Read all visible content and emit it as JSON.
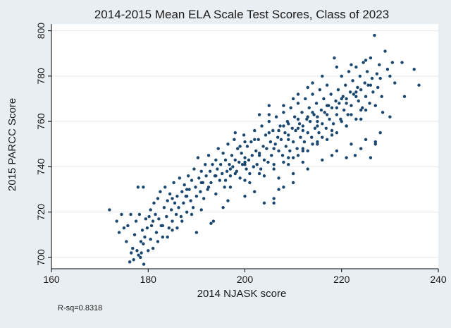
{
  "chart_data": {
    "type": "scatter",
    "title": "2014-2015 Mean ELA Scale Test Scores, Class of 2023",
    "xlabel": "2014 NJASK score",
    "ylabel": "2015 PARCC Score",
    "xlim": [
      160,
      240
    ],
    "ylim": [
      695,
      803
    ],
    "x_ticks": [
      160,
      180,
      200,
      220,
      240
    ],
    "y_ticks": [
      700,
      720,
      740,
      760,
      780,
      800
    ],
    "grid": "horizontal",
    "legend": "none",
    "annotation": "R-sq=0.8318",
    "point_color": "#1a476f",
    "background_color": "#e9eef2",
    "plot_background_color": "#ffffff",
    "grid_color": "#e3e9ee",
    "points": [
      [
        172,
        721
      ],
      [
        173.5,
        716
      ],
      [
        174,
        711
      ],
      [
        174.5,
        719
      ],
      [
        175,
        713
      ],
      [
        175.5,
        707
      ],
      [
        175.8,
        714
      ],
      [
        176.2,
        698
      ],
      [
        176.4,
        719
      ],
      [
        176.8,
        704
      ],
      [
        177,
        699
      ],
      [
        177.2,
        710
      ],
      [
        177.5,
        716
      ],
      [
        177.7,
        703
      ],
      [
        177.9,
        731
      ],
      [
        178,
        701
      ],
      [
        178.2,
        719
      ],
      [
        178.4,
        700
      ],
      [
        178.6,
        702
      ],
      [
        178.8,
        712
      ],
      [
        179,
        731
      ],
      [
        179.1,
        697
      ],
      [
        179.3,
        709
      ],
      [
        179.5,
        717
      ],
      [
        179.8,
        713
      ],
      [
        180,
        703
      ],
      [
        180.2,
        718
      ],
      [
        180.5,
        721
      ],
      [
        180.7,
        714
      ],
      [
        181,
        716
      ],
      [
        181.2,
        724
      ],
      [
        181.5,
        719
      ],
      [
        181.7,
        711
      ],
      [
        182,
        726
      ],
      [
        182.2,
        717
      ],
      [
        182.5,
        729
      ],
      [
        182.7,
        714
      ],
      [
        183,
        709
      ],
      [
        183.3,
        722
      ],
      [
        183.5,
        731
      ],
      [
        183.8,
        718
      ],
      [
        184,
        725
      ],
      [
        184.3,
        713
      ],
      [
        184.5,
        728
      ],
      [
        184.8,
        721
      ],
      [
        185,
        716
      ],
      [
        185.3,
        733
      ],
      [
        185.5,
        724
      ],
      [
        185.8,
        719
      ],
      [
        186,
        727
      ],
      [
        186.3,
        722
      ],
      [
        186.5,
        735
      ],
      [
        186.8,
        718
      ],
      [
        187,
        729
      ],
      [
        187.3,
        724
      ],
      [
        187.5,
        732
      ],
      [
        187.8,
        727
      ],
      [
        188,
        720
      ],
      [
        188.3,
        736
      ],
      [
        188.5,
        730
      ],
      [
        188.8,
        725
      ],
      [
        189,
        734
      ],
      [
        189.3,
        722
      ],
      [
        189.5,
        739
      ],
      [
        189.8,
        731
      ],
      [
        190,
        727
      ],
      [
        190.3,
        744
      ],
      [
        190.5,
        735
      ],
      [
        190.8,
        729
      ],
      [
        191,
        738
      ],
      [
        191.3,
        733
      ],
      [
        191.5,
        726
      ],
      [
        191.8,
        741
      ],
      [
        192,
        736
      ],
      [
        192.3,
        730
      ],
      [
        192.5,
        745
      ],
      [
        192.8,
        738
      ],
      [
        193,
        733
      ],
      [
        193.3,
        741
      ],
      [
        193.5,
        716
      ],
      [
        193.8,
        736
      ],
      [
        194,
        743
      ],
      [
        194.3,
        739
      ],
      [
        194.5,
        748
      ],
      [
        194.8,
        734
      ],
      [
        195,
        741
      ],
      [
        195.3,
        737
      ],
      [
        195.5,
        746
      ],
      [
        195.8,
        731
      ],
      [
        196,
        743
      ],
      [
        196.3,
        738
      ],
      [
        196.5,
        750
      ],
      [
        196.8,
        741
      ],
      [
        197,
        736
      ],
      [
        197.3,
        745
      ],
      [
        197.5,
        740
      ],
      [
        197.8,
        752
      ],
      [
        198,
        743
      ],
      [
        198.3,
        738
      ],
      [
        198.5,
        748
      ],
      [
        198.8,
        742
      ],
      [
        199,
        735
      ],
      [
        199.3,
        746
      ],
      [
        199.5,
        741
      ],
      [
        199.8,
        754
      ],
      [
        200,
        744
      ],
      [
        200.3,
        739
      ],
      [
        200.5,
        749
      ],
      [
        200.8,
        743
      ],
      [
        201,
        737
      ],
      [
        201.3,
        751
      ],
      [
        201.5,
        745
      ],
      [
        201.8,
        740
      ],
      [
        202,
        756
      ],
      [
        202.3,
        747
      ],
      [
        202.5,
        741
      ],
      [
        202.8,
        752
      ],
      [
        203,
        746
      ],
      [
        203.3,
        739
      ],
      [
        203.5,
        758
      ],
      [
        203.8,
        749
      ],
      [
        204,
        743
      ],
      [
        204.3,
        754
      ],
      [
        204.5,
        748
      ],
      [
        204.8,
        742
      ],
      [
        205,
        760
      ],
      [
        205.3,
        751
      ],
      [
        205.5,
        745
      ],
      [
        205.8,
        756
      ],
      [
        206,
        724
      ],
      [
        206.3,
        750
      ],
      [
        206.5,
        762
      ],
      [
        206.8,
        753
      ],
      [
        207,
        747
      ],
      [
        207.3,
        758
      ],
      [
        207.5,
        752
      ],
      [
        207.8,
        745
      ],
      [
        208,
        764
      ],
      [
        208.3,
        755
      ],
      [
        208.5,
        749
      ],
      [
        208.8,
        760
      ],
      [
        209,
        754
      ],
      [
        209.3,
        747
      ],
      [
        209.5,
        766
      ],
      [
        209.8,
        757
      ],
      [
        210,
        751
      ],
      [
        210.3,
        762
      ],
      [
        210.5,
        756
      ],
      [
        210.8,
        748
      ],
      [
        211,
        768
      ],
      [
        211.3,
        759
      ],
      [
        211.5,
        753
      ],
      [
        211.8,
        764
      ],
      [
        212,
        758
      ],
      [
        212.3,
        751
      ],
      [
        212.5,
        770
      ],
      [
        212.8,
        761
      ],
      [
        213,
        755
      ],
      [
        213.3,
        766
      ],
      [
        213.5,
        760
      ],
      [
        213.8,
        753
      ],
      [
        214,
        772
      ],
      [
        214.3,
        763
      ],
      [
        214.5,
        757
      ],
      [
        214.8,
        768
      ],
      [
        215,
        762
      ],
      [
        215.3,
        755
      ],
      [
        215.5,
        774
      ],
      [
        215.8,
        765
      ],
      [
        216,
        759
      ],
      [
        216.3,
        770
      ],
      [
        216.5,
        764
      ],
      [
        216.8,
        757
      ],
      [
        217,
        776
      ],
      [
        217.3,
        767
      ],
      [
        217.5,
        761
      ],
      [
        217.8,
        772
      ],
      [
        218,
        766
      ],
      [
        218.3,
        759
      ],
      [
        218.5,
        788
      ],
      [
        218.8,
        769
      ],
      [
        219,
        763
      ],
      [
        219.3,
        774
      ],
      [
        219.5,
        768
      ],
      [
        219.8,
        761
      ],
      [
        220,
        780
      ],
      [
        220.3,
        771
      ],
      [
        220.5,
        765
      ],
      [
        220.8,
        776
      ],
      [
        221,
        770
      ],
      [
        221.3,
        763
      ],
      [
        221.5,
        782
      ],
      [
        221.8,
        773
      ],
      [
        222,
        767
      ],
      [
        222.3,
        778
      ],
      [
        222.5,
        772
      ],
      [
        222.8,
        745
      ],
      [
        223,
        784
      ],
      [
        223.3,
        775
      ],
      [
        223.5,
        769
      ],
      [
        223.8,
        780
      ],
      [
        224,
        774
      ],
      [
        224.3,
        766
      ],
      [
        224.5,
        786
      ],
      [
        224.8,
        777
      ],
      [
        225,
        771
      ],
      [
        225.3,
        782
      ],
      [
        225.5,
        776
      ],
      [
        225.8,
        768
      ],
      [
        226,
        788
      ],
      [
        226.3,
        779
      ],
      [
        226.5,
        773
      ],
      [
        226.8,
        798
      ],
      [
        227,
        750
      ],
      [
        227.3,
        781
      ],
      [
        227.5,
        775
      ],
      [
        227.8,
        785
      ],
      [
        228,
        779
      ],
      [
        228.3,
        771
      ],
      [
        228.5,
        764
      ],
      [
        229,
        791
      ],
      [
        229.5,
        783
      ],
      [
        230,
        780
      ],
      [
        230.5,
        786
      ],
      [
        231,
        777
      ],
      [
        232.5,
        786
      ],
      [
        233,
        771
      ],
      [
        235,
        783
      ],
      [
        236,
        776
      ],
      [
        226,
        744
      ],
      [
        193,
        715
      ],
      [
        192.5,
        731
      ],
      [
        196.5,
        725
      ],
      [
        195.5,
        722
      ],
      [
        190,
        711
      ],
      [
        188,
        727
      ],
      [
        186,
        713
      ],
      [
        183,
        714
      ],
      [
        181,
        704
      ],
      [
        179,
        706
      ],
      [
        178.5,
        707
      ],
      [
        180.5,
        708
      ],
      [
        176.5,
        702
      ],
      [
        198,
        755
      ],
      [
        200,
        751
      ],
      [
        203,
        763
      ],
      [
        205,
        767
      ],
      [
        207,
        735
      ],
      [
        209,
        741
      ],
      [
        211,
        745
      ],
      [
        213,
        747
      ],
      [
        215,
        750
      ],
      [
        217,
        752
      ],
      [
        219,
        755
      ],
      [
        221,
        758
      ],
      [
        223,
        761
      ],
      [
        225,
        765
      ],
      [
        227,
        767
      ],
      [
        201,
        733
      ],
      [
        204,
        736
      ],
      [
        206,
        739
      ],
      [
        208,
        742
      ],
      [
        210,
        744
      ],
      [
        212,
        748
      ],
      [
        214,
        750
      ],
      [
        216,
        753
      ],
      [
        218,
        756
      ],
      [
        220,
        760
      ],
      [
        222,
        763
      ],
      [
        224,
        765
      ],
      [
        199,
        749
      ],
      [
        202,
        752
      ],
      [
        205,
        755
      ],
      [
        208,
        758
      ],
      [
        211,
        761
      ],
      [
        214,
        764
      ],
      [
        217,
        767
      ],
      [
        220,
        770
      ],
      [
        223,
        773
      ],
      [
        226,
        776
      ],
      [
        197,
        731
      ],
      [
        200,
        734
      ],
      [
        203,
        737
      ],
      [
        206,
        741
      ],
      [
        209,
        744
      ],
      [
        212,
        747
      ],
      [
        215,
        751
      ],
      [
        218,
        754
      ],
      [
        221,
        758
      ],
      [
        224,
        761
      ],
      [
        207,
        730
      ],
      [
        210,
        733
      ],
      [
        213,
        739
      ],
      [
        216,
        743
      ],
      [
        219,
        747
      ],
      [
        222,
        750
      ],
      [
        225,
        752
      ],
      [
        228,
        755
      ],
      [
        230,
        762
      ],
      [
        218,
        745
      ],
      [
        221,
        744
      ],
      [
        224,
        748
      ],
      [
        227,
        751
      ],
      [
        200,
        727
      ],
      [
        202,
        729
      ],
      [
        204,
        724
      ],
      [
        206,
        726
      ],
      [
        208,
        731
      ],
      [
        210,
        737
      ],
      [
        212,
        742
      ],
      [
        211,
        772
      ],
      [
        214,
        777
      ],
      [
        216,
        780
      ],
      [
        219,
        784
      ],
      [
        222,
        785
      ],
      [
        225,
        787
      ],
      [
        210,
        770
      ],
      [
        213,
        775
      ],
      [
        208,
        767
      ],
      [
        205,
        763
      ],
      [
        194,
        728
      ],
      [
        191,
        721
      ],
      [
        189,
        719
      ],
      [
        187,
        716
      ],
      [
        185,
        712
      ],
      [
        184,
        709
      ],
      [
        182,
        707
      ],
      [
        196,
        734
      ],
      [
        198,
        737
      ],
      [
        200,
        741
      ],
      [
        207,
        756
      ],
      [
        209,
        759
      ],
      [
        211,
        757
      ],
      [
        213,
        762
      ],
      [
        215,
        758
      ],
      [
        217,
        763
      ],
      [
        219,
        766
      ],
      [
        221,
        768
      ],
      [
        223,
        771
      ],
      [
        215,
        760
      ],
      [
        212,
        756
      ],
      [
        209,
        752
      ],
      [
        206,
        748
      ],
      [
        203,
        745
      ],
      [
        200,
        742
      ],
      [
        197,
        739
      ],
      [
        194,
        736
      ],
      [
        191,
        733
      ],
      [
        188,
        730
      ],
      [
        185,
        726
      ]
    ]
  }
}
